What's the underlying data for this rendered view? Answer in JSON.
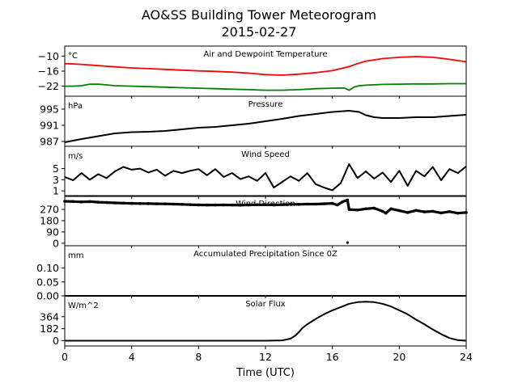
{
  "figure": {
    "title": "AO&SS Building Tower Meteorogram",
    "date": "2015-02-27",
    "xlabel": "Time (UTC)"
  },
  "chart_data": [
    {
      "type": "line",
      "title": "Air and Dewpoint Temperature",
      "unit_label": "°C",
      "xlim": [
        0,
        24
      ],
      "ylim": [
        -26,
        -6
      ],
      "yticks": [
        -10,
        -16,
        -22
      ],
      "ytick_labels": [
        "−10",
        "−16",
        "−22"
      ],
      "series": [
        {
          "color": "#ff0000",
          "x": [
            0,
            1,
            2,
            3,
            4,
            5,
            6,
            7,
            8,
            9,
            10,
            11,
            12,
            13,
            14,
            15,
            16,
            16.5,
            17,
            17.5,
            18,
            19,
            20,
            21,
            22,
            23,
            24
          ],
          "y": [
            -13,
            -13.3,
            -13.8,
            -14.3,
            -14.7,
            -15,
            -15.3,
            -15.6,
            -15.9,
            -16.1,
            -16.4,
            -16.8,
            -17.4,
            -17.6,
            -17.2,
            -16.6,
            -15.8,
            -15,
            -14.2,
            -13,
            -12,
            -11,
            -10.5,
            -10.2,
            -10.5,
            -11.3,
            -12.3
          ]
        },
        {
          "color": "#008000",
          "x": [
            0,
            0.5,
            1,
            1.5,
            2,
            3,
            4,
            5,
            6,
            7,
            8,
            9,
            10,
            11,
            12,
            13,
            14,
            15,
            16,
            16.7,
            17,
            17.3,
            17.6,
            18,
            19,
            20,
            21,
            22,
            23,
            24
          ],
          "y": [
            -22,
            -22,
            -21.8,
            -21.2,
            -21.2,
            -21.8,
            -22,
            -22.2,
            -22.4,
            -22.6,
            -22.8,
            -23,
            -23.2,
            -23.4,
            -23.6,
            -23.6,
            -23.4,
            -23,
            -22.8,
            -22.7,
            -23.6,
            -22.4,
            -21.8,
            -21.6,
            -21.3,
            -21.2,
            -21.1,
            -21.1,
            -21,
            -21
          ]
        }
      ]
    },
    {
      "type": "line",
      "title": "Pressure",
      "unit_label": "hPa",
      "xlim": [
        0,
        24
      ],
      "ylim": [
        985.8,
        998.2
      ],
      "yticks": [
        995,
        991,
        987
      ],
      "ytick_labels": [
        "995",
        "991",
        "987"
      ],
      "series": [
        {
          "color": "#000000",
          "x": [
            0,
            1,
            2,
            3,
            4,
            5,
            6,
            7,
            8,
            9,
            10,
            11,
            12,
            13,
            14,
            15,
            16,
            17,
            17.6,
            18,
            18.5,
            19,
            20,
            21,
            22,
            23,
            24
          ],
          "y": [
            986.8,
            987.6,
            988.3,
            989,
            989.3,
            989.4,
            989.6,
            990,
            990.4,
            990.6,
            991,
            991.4,
            992,
            992.6,
            993.3,
            993.8,
            994.3,
            994.6,
            994.3,
            993.5,
            993,
            992.8,
            992.8,
            993,
            993,
            993.3,
            993.6
          ]
        }
      ]
    },
    {
      "type": "line",
      "title": "Wind Speed",
      "unit_label": "m/s",
      "xlim": [
        0,
        24
      ],
      "ylim": [
        0,
        9
      ],
      "yticks": [
        5,
        3,
        1
      ],
      "ytick_labels": [
        "5",
        "3",
        "1"
      ],
      "series": [
        {
          "color": "#000000",
          "x": [
            0,
            0.5,
            1,
            1.5,
            2,
            2.5,
            3,
            3.5,
            4,
            4.5,
            5,
            5.5,
            6,
            6.5,
            7,
            7.5,
            8,
            8.5,
            9,
            9.5,
            10,
            10.5,
            11,
            11.5,
            12,
            12.5,
            13,
            13.5,
            14,
            14.5,
            15,
            15.5,
            16,
            16.5,
            17,
            17.5,
            18,
            18.5,
            19,
            19.5,
            20,
            20.5,
            21,
            21.5,
            22,
            22.5,
            23,
            23.5,
            24
          ],
          "y": [
            3.5,
            2.9,
            4.2,
            3.0,
            4.0,
            3.3,
            4.5,
            5.3,
            4.8,
            5.0,
            4.3,
            4.8,
            3.7,
            4.6,
            4.2,
            4.6,
            4.9,
            3.8,
            4.9,
            3.5,
            4.2,
            3.1,
            3.6,
            2.8,
            4.2,
            1.6,
            2.6,
            3.6,
            2.8,
            4.2,
            2.2,
            1.6,
            1.1,
            2.4,
            5.8,
            3.3,
            4.5,
            3.2,
            4.3,
            2.6,
            4.6,
            1.9,
            4.6,
            3.6,
            5.3,
            2.9,
            4.9,
            4.2,
            5.4
          ]
        }
      ]
    },
    {
      "type": "scatter",
      "title": "Wind Direction",
      "unit_label": "",
      "xlim": [
        0,
        24
      ],
      "ylim": [
        -20,
        380
      ],
      "yticks": [
        270,
        180,
        90,
        0
      ],
      "ytick_labels": [
        "270",
        "180",
        "90",
        "0"
      ],
      "series": [
        {
          "color": "#000000",
          "x": [
            0,
            0.5,
            1,
            1.5,
            2,
            2.5,
            3,
            3.5,
            4,
            4.5,
            5,
            5.5,
            6,
            6.5,
            7,
            7.5,
            8,
            8.5,
            9,
            9.5,
            10,
            10.5,
            11,
            11.5,
            12,
            12.5,
            13,
            13.5,
            14,
            14.5,
            15,
            15.5,
            16,
            16.3,
            16.6,
            16.9,
            17,
            17.5,
            18,
            18.5,
            19,
            19.2,
            19.5,
            20,
            20.5,
            21,
            21.5,
            22,
            22.5,
            23,
            23.5,
            24
          ],
          "y": [
            335,
            333,
            330,
            332,
            328,
            325,
            322,
            320,
            318,
            317,
            316,
            315,
            314,
            312,
            310,
            308,
            306,
            305,
            305,
            306,
            305,
            304,
            306,
            307,
            308,
            306,
            308,
            310,
            310,
            312,
            312,
            315,
            318,
            305,
            330,
            345,
            270,
            265,
            275,
            280,
            255,
            240,
            275,
            260,
            245,
            262,
            250,
            255,
            242,
            252,
            240,
            245
          ]
        }
      ],
      "outlier": {
        "x": 16.9,
        "y": 5
      }
    },
    {
      "type": "line",
      "title": "Accumulated Precipitation Since 0Z",
      "unit_label": "mm",
      "xlim": [
        0,
        24
      ],
      "ylim": [
        0,
        0.18
      ],
      "yticks": [
        0.1,
        0.05,
        0.0
      ],
      "ytick_labels": [
        "0.10",
        "0.05",
        "0.00"
      ],
      "series": [
        {
          "color": "#000000",
          "x": [
            0,
            24
          ],
          "y": [
            0,
            0
          ]
        }
      ]
    },
    {
      "type": "line",
      "title": "Solar Flux",
      "unit_label": "W/m^2",
      "xlim": [
        0,
        24
      ],
      "ylim": [
        -80,
        680
      ],
      "yticks": [
        364,
        182,
        0
      ],
      "ytick_labels": [
        "364",
        "182",
        "0"
      ],
      "xticks": [
        0,
        4,
        8,
        12,
        16,
        20,
        24
      ],
      "xtick_labels": [
        "0",
        "4",
        "8",
        "12",
        "16",
        "20",
        "24"
      ],
      "series": [
        {
          "color": "#000000",
          "x": [
            0,
            12,
            13,
            13.5,
            13.8,
            14,
            14.2,
            14.5,
            15,
            15.5,
            16,
            16.5,
            17,
            17.5,
            18,
            18.5,
            19,
            19.5,
            20,
            20.5,
            21,
            21.5,
            22,
            22.5,
            23,
            23.5,
            24
          ],
          "y": [
            0,
            0,
            5,
            30,
            80,
            130,
            190,
            250,
            330,
            400,
            460,
            510,
            560,
            585,
            590,
            585,
            560,
            520,
            460,
            400,
            320,
            250,
            170,
            100,
            40,
            8,
            0
          ]
        }
      ]
    }
  ]
}
